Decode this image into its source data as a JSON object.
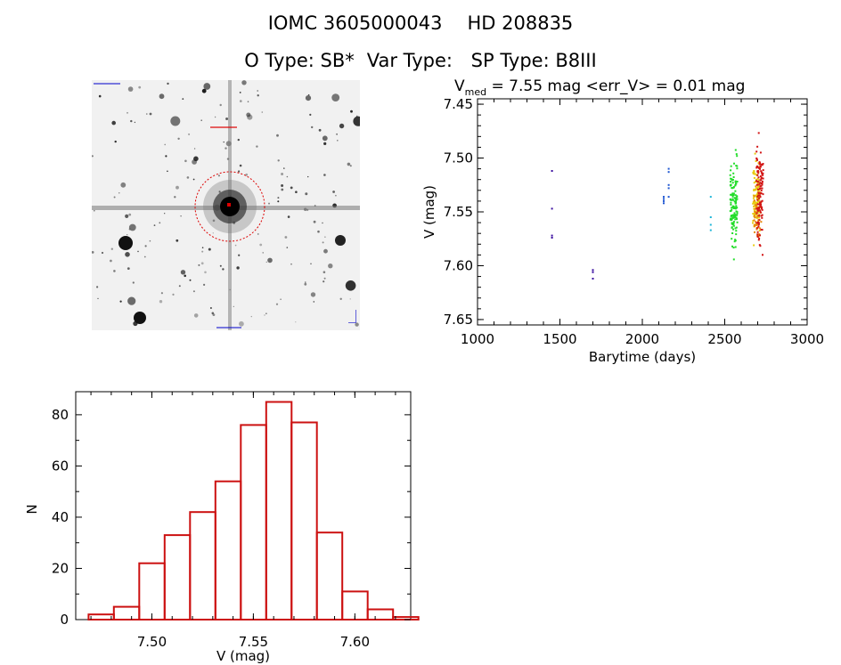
{
  "header": {
    "catalog_id": "IOMC 3605000043",
    "hd_id": "HD 208835",
    "otype_label": "O Type:",
    "otype_value": "SB*",
    "vartype_label": "Var Type:",
    "vartype_value": "",
    "sptype_label": "SP Type:",
    "sptype_value": "B8III"
  },
  "image": {
    "colors": {
      "background": "#f1f1f1",
      "aperture": "#dd0000",
      "labels": "#0000cc"
    }
  },
  "chart_data": [
    {
      "type": "scatter",
      "title_prefix": "V",
      "title_sub": "med",
      "title_rest": " = 7.55 mag <err_V> = 0.01 mag",
      "xlabel": "Barytime (days)",
      "ylabel": "V (mag)",
      "xlim": [
        1000,
        3000
      ],
      "ylim": [
        7.655,
        7.445
      ],
      "y_inverted": true,
      "xticks": [
        1000,
        1500,
        2000,
        2500,
        3000
      ],
      "yticks": [
        7.45,
        7.5,
        7.55,
        7.6,
        7.65
      ],
      "ytick_labels": [
        "7.45",
        "7.50",
        "7.55",
        "7.60",
        "7.65"
      ],
      "grid": false,
      "series": [
        {
          "color": "#3b0fa0",
          "clusters": [
            {
              "x": 1452,
              "y": [
                7.512,
                7.547,
                7.572,
                7.574
              ]
            }
          ]
        },
        {
          "color": "#3b0fa0",
          "clusters": [
            {
              "x": 1700,
              "y": [
                7.604,
                7.606,
                7.612
              ]
            }
          ]
        },
        {
          "color": "#1e56d2",
          "clusters": [
            {
              "x": 2130,
              "y": [
                7.536,
                7.538,
                7.54,
                7.542
              ]
            },
            {
              "x": 2160,
              "y": [
                7.51,
                7.513,
                7.525,
                7.528,
                7.536
              ]
            }
          ]
        },
        {
          "color": "#1fb6d8",
          "clusters": [
            {
              "x": 2415,
              "y": [
                7.536,
                7.555,
                7.562,
                7.567
              ]
            }
          ]
        },
        {
          "color": "#22dd2a",
          "clusters": [
            {
              "x": 2555,
              "band": [
                7.486,
                7.6
              ],
              "n": 130
            }
          ]
        },
        {
          "color": "#e8cc10",
          "clusters": [
            {
              "x": 2692,
              "band": [
                7.488,
                7.59
              ],
              "n": 110
            }
          ]
        },
        {
          "color": "#e8890a",
          "clusters": [
            {
              "x": 2700,
              "band": [
                7.52,
                7.588
              ],
              "n": 50
            }
          ]
        },
        {
          "color": "#d21515",
          "clusters": [
            {
              "x": 2712,
              "band": [
                7.467,
                7.6
              ],
              "n": 120
            }
          ]
        }
      ]
    },
    {
      "type": "bar",
      "subtype": "histogram",
      "xlabel": "V (mag)",
      "ylabel": "N",
      "bin_width": 0.0125,
      "bin_start": 7.4688,
      "values": [
        2,
        5,
        22,
        33,
        42,
        54,
        76,
        85,
        77,
        34,
        11,
        4,
        1
      ],
      "xlim": [
        7.4625,
        7.6275
      ],
      "ylim": [
        0,
        89
      ],
      "xticks": [
        7.5,
        7.55,
        7.6
      ],
      "xtick_labels": [
        "7.50",
        "7.55",
        "7.60"
      ],
      "yticks": [
        0,
        20,
        40,
        60,
        80
      ],
      "color": "#cc1111",
      "grid": false
    }
  ]
}
